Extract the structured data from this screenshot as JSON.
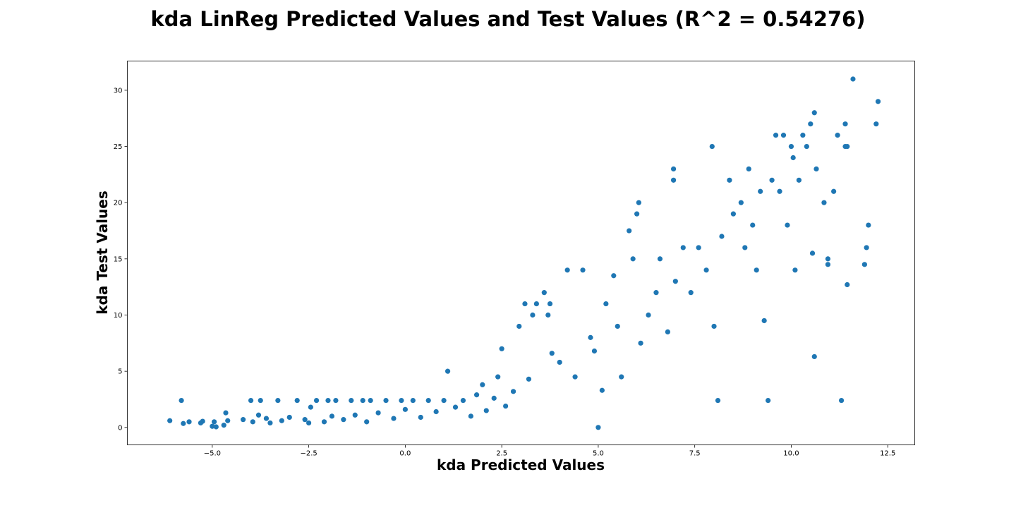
{
  "chart_data": {
    "type": "scatter",
    "title": "kda LinReg Predicted Values and Test Values (R^2 = 0.54276)",
    "xlabel": "kda Predicted Values",
    "ylabel": "kda Test Values",
    "xlim": [
      -7.2,
      13.2
    ],
    "ylim": [
      -1.55,
      32.6
    ],
    "xticks": [
      -5.0,
      -2.5,
      0.0,
      2.5,
      5.0,
      7.5,
      10.0,
      12.5
    ],
    "xtick_labels": [
      "−5.0",
      "−2.5",
      "0.0",
      "2.5",
      "5.0",
      "7.5",
      "10.0",
      "12.5"
    ],
    "yticks": [
      0,
      5,
      10,
      15,
      20,
      25,
      30
    ],
    "ytick_labels": [
      "0",
      "5",
      "10",
      "15",
      "20",
      "25",
      "30"
    ],
    "grid": false,
    "legend": "none",
    "marker_color": "#1f77b4",
    "series": [
      {
        "points": [
          [
            -6.1,
            0.6
          ],
          [
            -5.8,
            2.4
          ],
          [
            -5.75,
            0.35
          ],
          [
            -5.6,
            0.5
          ],
          [
            -5.3,
            0.4
          ],
          [
            -5.25,
            0.55
          ],
          [
            -5.0,
            0.1
          ],
          [
            -4.95,
            0.5
          ],
          [
            -4.9,
            0.05
          ],
          [
            -4.7,
            0.2
          ],
          [
            -4.65,
            1.3
          ],
          [
            -4.6,
            0.6
          ],
          [
            -4.2,
            0.7
          ],
          [
            -4.0,
            2.4
          ],
          [
            -3.95,
            0.5
          ],
          [
            -3.8,
            1.1
          ],
          [
            -3.75,
            2.4
          ],
          [
            -3.6,
            0.8
          ],
          [
            -3.5,
            0.4
          ],
          [
            -3.3,
            2.4
          ],
          [
            -3.2,
            0.6
          ],
          [
            -3.0,
            0.9
          ],
          [
            -2.8,
            2.4
          ],
          [
            -2.6,
            0.7
          ],
          [
            -2.5,
            0.4
          ],
          [
            -2.45,
            1.8
          ],
          [
            -2.3,
            2.4
          ],
          [
            -2.1,
            0.5
          ],
          [
            -2.0,
            2.4
          ],
          [
            -1.9,
            1.0
          ],
          [
            -1.8,
            2.4
          ],
          [
            -1.6,
            0.7
          ],
          [
            -1.4,
            2.4
          ],
          [
            -1.3,
            1.1
          ],
          [
            -1.1,
            2.4
          ],
          [
            -1.0,
            0.5
          ],
          [
            -0.9,
            2.4
          ],
          [
            -0.7,
            1.3
          ],
          [
            -0.5,
            2.4
          ],
          [
            -0.3,
            0.8
          ],
          [
            -0.1,
            2.4
          ],
          [
            0.0,
            1.6
          ],
          [
            0.2,
            2.4
          ],
          [
            0.4,
            0.9
          ],
          [
            0.6,
            2.4
          ],
          [
            0.8,
            1.4
          ],
          [
            1.0,
            2.4
          ],
          [
            1.1,
            5.0
          ],
          [
            1.3,
            1.8
          ],
          [
            1.5,
            2.4
          ],
          [
            1.7,
            1.0
          ],
          [
            1.85,
            2.9
          ],
          [
            2.0,
            3.8
          ],
          [
            2.1,
            1.5
          ],
          [
            2.3,
            2.6
          ],
          [
            2.4,
            4.5
          ],
          [
            2.5,
            7.0
          ],
          [
            2.6,
            1.9
          ],
          [
            2.8,
            3.2
          ],
          [
            2.95,
            9.0
          ],
          [
            3.1,
            11.0
          ],
          [
            3.2,
            4.3
          ],
          [
            3.3,
            10.0
          ],
          [
            3.4,
            11.0
          ],
          [
            3.6,
            12.0
          ],
          [
            3.7,
            10.0
          ],
          [
            3.75,
            11.0
          ],
          [
            3.8,
            6.6
          ],
          [
            4.0,
            5.8
          ],
          [
            4.2,
            14.0
          ],
          [
            4.4,
            4.5
          ],
          [
            4.6,
            14.0
          ],
          [
            4.8,
            8.0
          ],
          [
            4.9,
            6.8
          ],
          [
            5.0,
            0.0
          ],
          [
            5.1,
            3.3
          ],
          [
            5.2,
            11.0
          ],
          [
            5.4,
            13.5
          ],
          [
            5.5,
            9.0
          ],
          [
            5.6,
            4.5
          ],
          [
            5.8,
            17.5
          ],
          [
            5.9,
            15.0
          ],
          [
            6.0,
            19.0
          ],
          [
            6.05,
            20.0
          ],
          [
            6.1,
            7.5
          ],
          [
            6.3,
            10.0
          ],
          [
            6.5,
            12.0
          ],
          [
            6.6,
            15.0
          ],
          [
            6.8,
            8.5
          ],
          [
            6.95,
            22.0
          ],
          [
            6.95,
            23.0
          ],
          [
            7.0,
            13.0
          ],
          [
            7.2,
            16.0
          ],
          [
            7.4,
            12.0
          ],
          [
            7.6,
            16.0
          ],
          [
            7.8,
            14.0
          ],
          [
            7.95,
            25.0
          ],
          [
            8.0,
            9.0
          ],
          [
            8.1,
            2.4
          ],
          [
            8.2,
            17.0
          ],
          [
            8.4,
            22.0
          ],
          [
            8.5,
            19.0
          ],
          [
            8.7,
            20.0
          ],
          [
            8.8,
            16.0
          ],
          [
            8.9,
            23.0
          ],
          [
            9.0,
            18.0
          ],
          [
            9.1,
            14.0
          ],
          [
            9.2,
            21.0
          ],
          [
            9.3,
            9.5
          ],
          [
            9.4,
            2.4
          ],
          [
            9.5,
            22.0
          ],
          [
            9.6,
            26.0
          ],
          [
            9.7,
            21.0
          ],
          [
            9.8,
            26.0
          ],
          [
            9.9,
            18.0
          ],
          [
            10.0,
            25.0
          ],
          [
            10.05,
            24.0
          ],
          [
            10.1,
            14.0
          ],
          [
            10.2,
            22.0
          ],
          [
            10.3,
            26.0
          ],
          [
            10.4,
            25.0
          ],
          [
            10.5,
            27.0
          ],
          [
            10.55,
            15.5
          ],
          [
            10.6,
            28.0
          ],
          [
            10.65,
            23.0
          ],
          [
            10.6,
            6.3
          ],
          [
            10.85,
            20.0
          ],
          [
            10.95,
            15.0
          ],
          [
            10.95,
            14.5
          ],
          [
            11.1,
            21.0
          ],
          [
            11.2,
            26.0
          ],
          [
            11.3,
            2.4
          ],
          [
            11.4,
            27.0
          ],
          [
            11.4,
            25.0
          ],
          [
            11.45,
            25.0
          ],
          [
            11.45,
            12.7
          ],
          [
            11.6,
            31.0
          ],
          [
            11.9,
            14.5
          ],
          [
            11.95,
            16.0
          ],
          [
            12.0,
            18.0
          ],
          [
            12.2,
            27.0
          ],
          [
            12.25,
            29.0
          ]
        ]
      }
    ]
  }
}
